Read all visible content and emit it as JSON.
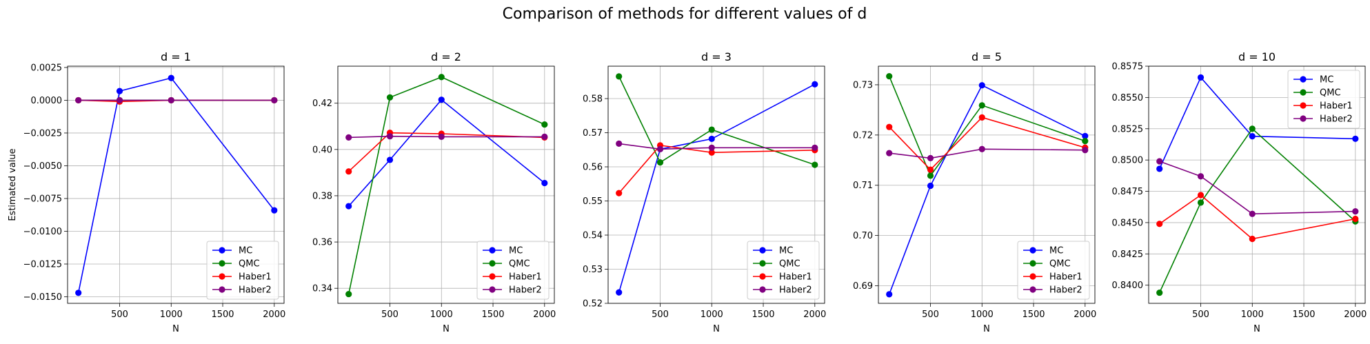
{
  "figure": {
    "suptitle": "Comparison of methods for different values of d"
  },
  "chart_data": [
    {
      "type": "line",
      "title": "d = 1",
      "xlabel": "N",
      "ylabel": "Estimated value",
      "x": [
        100,
        500,
        1000,
        2000
      ],
      "xlim": [
        -5,
        2095
      ],
      "ylim": [
        -0.0155,
        0.0026
      ],
      "xticks": [
        500,
        1000,
        1500,
        2000
      ],
      "yticks": [
        -0.015,
        -0.0125,
        -0.01,
        -0.0075,
        -0.005,
        -0.0025,
        0.0,
        0.0025
      ],
      "ytick_labels": [
        "−0.0150",
        "−0.0125",
        "−0.0100",
        "−0.0075",
        "−0.0050",
        "−0.0025",
        "0.0000",
        "0.0025"
      ],
      "grid": true,
      "legend": "lower right",
      "series": [
        {
          "name": "MC",
          "color": "#0000ff",
          "values": [
            -0.0147,
            0.0007,
            0.0017,
            -0.0084
          ]
        },
        {
          "name": "QMC",
          "color": "#008000",
          "values": [
            0.0,
            0.0,
            0.0,
            0.0
          ]
        },
        {
          "name": "Haber1",
          "color": "#ff0000",
          "values": [
            0.0,
            -0.0001,
            0.0,
            0.0
          ]
        },
        {
          "name": "Haber2",
          "color": "#800080",
          "values": [
            0.0,
            0.0,
            0.0,
            0.0
          ]
        }
      ]
    },
    {
      "type": "line",
      "title": "d = 2",
      "xlabel": "N",
      "ylabel": "",
      "x": [
        100,
        500,
        1000,
        2000
      ],
      "xlim": [
        -5,
        2095
      ],
      "ylim": [
        0.3335,
        0.436
      ],
      "xticks": [
        500,
        1000,
        1500,
        2000
      ],
      "yticks": [
        0.34,
        0.36,
        0.38,
        0.4,
        0.42
      ],
      "ytick_labels": [
        "0.34",
        "0.36",
        "0.38",
        "0.40",
        "0.42"
      ],
      "grid": true,
      "legend": "lower right",
      "series": [
        {
          "name": "MC",
          "color": "#0000ff",
          "values": [
            0.3755,
            0.3955,
            0.4215,
            0.3855
          ]
        },
        {
          "name": "QMC",
          "color": "#008000",
          "values": [
            0.3375,
            0.4225,
            0.4313,
            0.4108
          ]
        },
        {
          "name": "Haber1",
          "color": "#ff0000",
          "values": [
            0.3905,
            0.4072,
            0.4068,
            0.4052
          ]
        },
        {
          "name": "Haber2",
          "color": "#800080",
          "values": [
            0.4052,
            0.4057,
            0.4055,
            0.4055
          ]
        }
      ]
    },
    {
      "type": "line",
      "title": "d = 3",
      "xlabel": "N",
      "ylabel": "",
      "x": [
        100,
        500,
        1000,
        2000
      ],
      "xlim": [
        -5,
        2095
      ],
      "ylim": [
        0.52,
        0.5895
      ],
      "xticks": [
        500,
        1000,
        1500,
        2000
      ],
      "yticks": [
        0.52,
        0.53,
        0.54,
        0.55,
        0.56,
        0.57,
        0.58
      ],
      "ytick_labels": [
        "0.52",
        "0.53",
        "0.54",
        "0.55",
        "0.56",
        "0.57",
        "0.58"
      ],
      "grid": true,
      "legend": "lower right",
      "series": [
        {
          "name": "MC",
          "color": "#0000ff",
          "values": [
            0.5232,
            0.5652,
            0.5682,
            0.5842
          ]
        },
        {
          "name": "QMC",
          "color": "#008000",
          "values": [
            0.5865,
            0.5613,
            0.5709,
            0.5606
          ]
        },
        {
          "name": "Haber1",
          "color": "#ff0000",
          "values": [
            0.5523,
            0.5663,
            0.5642,
            0.5649
          ]
        },
        {
          "name": "Haber2",
          "color": "#800080",
          "values": [
            0.5668,
            0.5652,
            0.5656,
            0.5656
          ]
        }
      ]
    },
    {
      "type": "line",
      "title": "d = 5",
      "xlabel": "N",
      "ylabel": "",
      "x": [
        100,
        500,
        1000,
        2000
      ],
      "xlim": [
        -5,
        2095
      ],
      "ylim": [
        0.6865,
        0.7337
      ],
      "xticks": [
        500,
        1000,
        1500,
        2000
      ],
      "yticks": [
        0.69,
        0.7,
        0.71,
        0.72,
        0.73
      ],
      "ytick_labels": [
        "0.69",
        "0.70",
        "0.71",
        "0.72",
        "0.73"
      ],
      "grid": true,
      "legend": "lower right",
      "series": [
        {
          "name": "MC",
          "color": "#0000ff",
          "values": [
            0.6883,
            0.7099,
            0.7299,
            0.7198
          ]
        },
        {
          "name": "QMC",
          "color": "#008000",
          "values": [
            0.7317,
            0.7119,
            0.7259,
            0.7188
          ]
        },
        {
          "name": "Haber1",
          "color": "#ff0000",
          "values": [
            0.7216,
            0.7131,
            0.7235,
            0.7175
          ]
        },
        {
          "name": "Haber2",
          "color": "#800080",
          "values": [
            0.7164,
            0.7154,
            0.7172,
            0.717
          ]
        }
      ]
    },
    {
      "type": "line",
      "title": "d = 10",
      "xlabel": "N",
      "ylabel": "",
      "x": [
        100,
        500,
        1000,
        2000
      ],
      "xlim": [
        -5,
        2095
      ],
      "ylim": [
        0.83855,
        0.8575
      ],
      "xticks": [
        500,
        1000,
        1500,
        2000
      ],
      "yticks": [
        0.84,
        0.8425,
        0.845,
        0.8475,
        0.85,
        0.8525,
        0.855,
        0.8575
      ],
      "ytick_labels": [
        "0.8400",
        "0.8425",
        "0.8450",
        "0.8475",
        "0.8500",
        "0.8525",
        "0.8550",
        "0.8575"
      ],
      "grid": true,
      "legend": "upper right",
      "series": [
        {
          "name": "MC",
          "color": "#0000ff",
          "values": [
            0.8493,
            0.8566,
            0.8519,
            0.8517
          ]
        },
        {
          "name": "QMC",
          "color": "#008000",
          "values": [
            0.8394,
            0.8466,
            0.8525,
            0.8451
          ]
        },
        {
          "name": "Haber1",
          "color": "#ff0000",
          "values": [
            0.8449,
            0.8472,
            0.8437,
            0.8453
          ]
        },
        {
          "name": "Haber2",
          "color": "#800080",
          "values": [
            0.8499,
            0.8487,
            0.8457,
            0.8459
          ]
        }
      ]
    }
  ]
}
